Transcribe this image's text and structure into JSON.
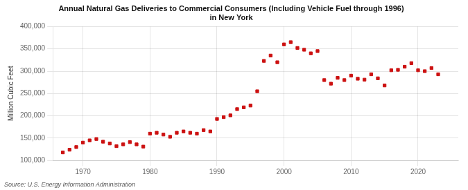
{
  "chart_data": {
    "type": "scatter",
    "title": "Annual Natural Gas Deliveries to Commercial Consumers (Including Vehicle Fuel through 1996)\nin New York",
    "ylabel": "Million Cubic Feet",
    "source": "Source: U.S. Energy Information Administration",
    "color": "#cc1111",
    "marker": "square",
    "grid": true,
    "ylim": [
      100000,
      400000
    ],
    "yticks": [
      {
        "value": 100000,
        "label": "100,000"
      },
      {
        "value": 150000,
        "label": "150,000"
      },
      {
        "value": 200000,
        "label": "200,000"
      },
      {
        "value": 250000,
        "label": "250,000"
      },
      {
        "value": 300000,
        "label": "300,000"
      },
      {
        "value": 350000,
        "label": "350,000"
      },
      {
        "value": 400000,
        "label": "400,000"
      }
    ],
    "xlim": [
      1965.5,
      2026
    ],
    "xticks": [
      1970,
      1980,
      1990,
      2000,
      2010,
      2020
    ],
    "x": [
      1967,
      1968,
      1969,
      1970,
      1971,
      1972,
      1973,
      1974,
      1975,
      1976,
      1977,
      1978,
      1979,
      1980,
      1981,
      1982,
      1983,
      1984,
      1985,
      1986,
      1987,
      1988,
      1989,
      1990,
      1991,
      1992,
      1993,
      1994,
      1995,
      1996,
      1997,
      1998,
      1999,
      2000,
      2001,
      2002,
      2003,
      2004,
      2005,
      2006,
      2007,
      2008,
      2009,
      2010,
      2011,
      2012,
      2013,
      2014,
      2015,
      2016,
      2017,
      2018,
      2019,
      2020,
      2021,
      2022,
      2023
    ],
    "values": [
      118000,
      124000,
      130000,
      140000,
      145000,
      148000,
      142000,
      138000,
      132000,
      136000,
      141000,
      136000,
      131000,
      160000,
      162000,
      158000,
      153000,
      162000,
      165000,
      162000,
      160000,
      168000,
      165000,
      193000,
      197000,
      201000,
      215000,
      219000,
      223000,
      255000,
      323000,
      335000,
      320000,
      360000,
      365000,
      352000,
      348000,
      340000,
      345000,
      280000,
      272000,
      285000,
      280000,
      290000,
      283000,
      281000,
      293000,
      284000,
      268000,
      302000,
      303000,
      310000,
      318000,
      302000,
      300000,
      307000,
      293000
    ]
  }
}
